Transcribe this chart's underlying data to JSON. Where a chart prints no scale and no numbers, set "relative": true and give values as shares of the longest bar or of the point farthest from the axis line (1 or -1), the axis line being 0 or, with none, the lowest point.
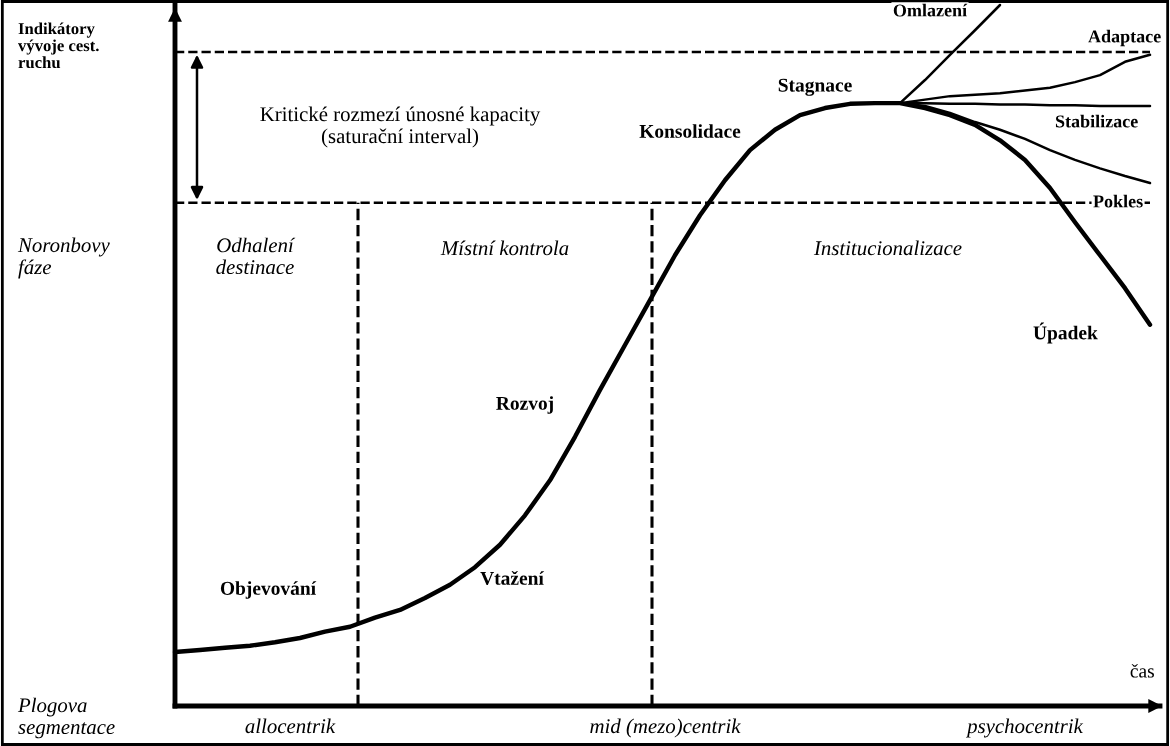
{
  "chart_data": {
    "type": "line",
    "relative": true,
    "line_style": "solid",
    "marker": "none",
    "ylabel": "Indikátory vývoje cest. ruchu",
    "xlabel": "čas",
    "categories": [
      null,
      null,
      null,
      null,
      null,
      null,
      null,
      null,
      null,
      null,
      null,
      null,
      null,
      null,
      null,
      null,
      null,
      null,
      null,
      null,
      null,
      null,
      null,
      null,
      null,
      null,
      null,
      null,
      null,
      null,
      null,
      null,
      null,
      null,
      null,
      null,
      null,
      null,
      null,
      null
    ],
    "series": [
      {
        "color": "#000000",
        "values": [
          0.077,
          0.08,
          0.083,
          0.086,
          0.091,
          0.097,
          0.106,
          0.113,
          0.126,
          0.137,
          0.154,
          0.173,
          0.198,
          0.23,
          0.272,
          0.322,
          0.384,
          0.451,
          0.515,
          0.579,
          0.643,
          0.7,
          0.75,
          0.793,
          0.822,
          0.843,
          0.853,
          0.859,
          0.86,
          0.86,
          0.853,
          0.843,
          0.829,
          0.807,
          0.779,
          0.739,
          0.69,
          0.643,
          0.596,
          0.544
        ]
      },
      {
        "color": "#000000",
        "values": [
          null,
          null,
          null,
          null,
          null,
          null,
          null,
          null,
          null,
          null,
          null,
          null,
          null,
          null,
          null,
          null,
          null,
          null,
          null,
          null,
          null,
          null,
          null,
          null,
          null,
          null,
          null,
          null,
          null,
          0.86,
          0.893,
          0.929,
          0.964,
          1.0,
          null,
          null,
          null,
          null,
          null,
          null
        ]
      },
      {
        "color": "#000000",
        "values": [
          null,
          null,
          null,
          null,
          null,
          null,
          null,
          null,
          null,
          null,
          null,
          null,
          null,
          null,
          null,
          null,
          null,
          null,
          null,
          null,
          null,
          null,
          null,
          null,
          null,
          null,
          null,
          null,
          null,
          0.86,
          0.865,
          0.87,
          0.872,
          0.874,
          0.878,
          0.882,
          0.89,
          0.9,
          0.919,
          0.929
        ]
      },
      {
        "color": "#000000",
        "values": [
          null,
          null,
          null,
          null,
          null,
          null,
          null,
          null,
          null,
          null,
          null,
          null,
          null,
          null,
          null,
          null,
          null,
          null,
          null,
          null,
          null,
          null,
          null,
          null,
          null,
          null,
          null,
          null,
          null,
          0.86,
          0.86,
          0.859,
          0.859,
          0.858,
          0.858,
          0.857,
          0.857,
          0.856,
          0.856,
          0.856
        ]
      },
      {
        "color": "#000000",
        "values": [
          null,
          null,
          null,
          null,
          null,
          null,
          null,
          null,
          null,
          null,
          null,
          null,
          null,
          null,
          null,
          null,
          null,
          null,
          null,
          null,
          null,
          null,
          null,
          null,
          null,
          null,
          null,
          null,
          null,
          0.86,
          0.856,
          0.846,
          0.833,
          0.822,
          0.809,
          0.793,
          0.779,
          0.767,
          0.756,
          0.746
        ]
      }
    ],
    "ref_lines": [
      {
        "axis": "y",
        "value": 0.933,
        "color": "#000000",
        "line_style": "dashed"
      },
      {
        "axis": "y",
        "value": 0.718,
        "color": "#000000",
        "line_style": "dashed"
      }
    ],
    "annotations": [
      "Objevování",
      "Vtažení",
      "Rozvoj",
      "Konsolidace",
      "Stagnace",
      "Omlazení",
      "Adaptace",
      "Stabilizace",
      "Pokles",
      "Úpadek",
      "Odhalení\ndestinace",
      "Místní kontrola",
      "Institucionalizace",
      "Kritické rozmezí únosné kapacity\n(saturační interval)",
      "Noronbovy\nfáze",
      "Plogova\nsegmentace",
      "allocentrik",
      "mid (mezo)centrik",
      "psychocentrik"
    ]
  }
}
